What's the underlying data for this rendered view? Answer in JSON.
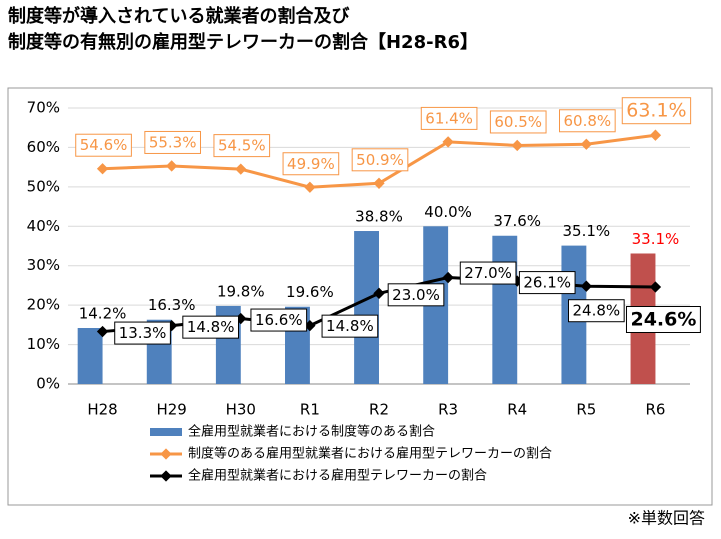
{
  "title_lines": [
    "制度等が導入されている就業者の割合及び",
    "制度等の有無別の雇用型テレワーカーの割合【H28-R6】"
  ],
  "footnote": "※単数回答",
  "chart_data": {
    "type": "bar",
    "categories": [
      "H28",
      "H29",
      "H30",
      "R1",
      "R2",
      "R3",
      "R4",
      "R5",
      "R6"
    ],
    "ylim": [
      0,
      70
    ],
    "yticks": [
      {
        "value": 0,
        "label": "0%"
      },
      {
        "value": 10,
        "label": "10%"
      },
      {
        "value": 20,
        "label": "20%"
      },
      {
        "value": 30,
        "label": "30%"
      },
      {
        "value": 40,
        "label": "40%"
      },
      {
        "value": 50,
        "label": "50%"
      },
      {
        "value": 60,
        "label": "60%"
      },
      {
        "value": 70,
        "label": "70%"
      }
    ],
    "grid": true,
    "series": [
      {
        "name": "全雇用型就業者における制度等のある割合",
        "type": "bar",
        "color": "#4f81bd",
        "point_colors": [
          "#4f81bd",
          "#4f81bd",
          "#4f81bd",
          "#4f81bd",
          "#4f81bd",
          "#4f81bd",
          "#4f81bd",
          "#4f81bd",
          "#c0504d"
        ],
        "values": [
          14.2,
          16.3,
          19.8,
          19.6,
          38.8,
          40.0,
          37.6,
          35.1,
          33.1
        ],
        "value_labels": [
          "14.2%",
          "16.3%",
          "19.8%",
          "19.6%",
          "38.8%",
          "40.0%",
          "37.6%",
          "35.1%",
          "33.1%"
        ]
      },
      {
        "name": "制度等のある雇用型就業者における雇用型テレワーカーの割合",
        "type": "line",
        "color": "#f79646",
        "values": [
          54.6,
          55.3,
          54.5,
          49.9,
          50.9,
          61.4,
          60.5,
          60.8,
          63.1
        ],
        "value_labels": [
          "54.6%",
          "55.3%",
          "54.5%",
          "49.9%",
          "50.9%",
          "61.4%",
          "60.5%",
          "60.8%",
          "63.1%"
        ]
      },
      {
        "name": "全雇用型就業者における雇用型テレワーカーの割合",
        "type": "line",
        "color": "#000000",
        "values": [
          13.3,
          14.8,
          16.6,
          14.8,
          23.0,
          27.0,
          26.1,
          24.8,
          24.6
        ],
        "value_labels": [
          "13.3%",
          "14.8%",
          "16.6%",
          "14.8%",
          "23.0%",
          "27.0%",
          "26.1%",
          "24.8%",
          "24.6%"
        ]
      }
    ]
  }
}
